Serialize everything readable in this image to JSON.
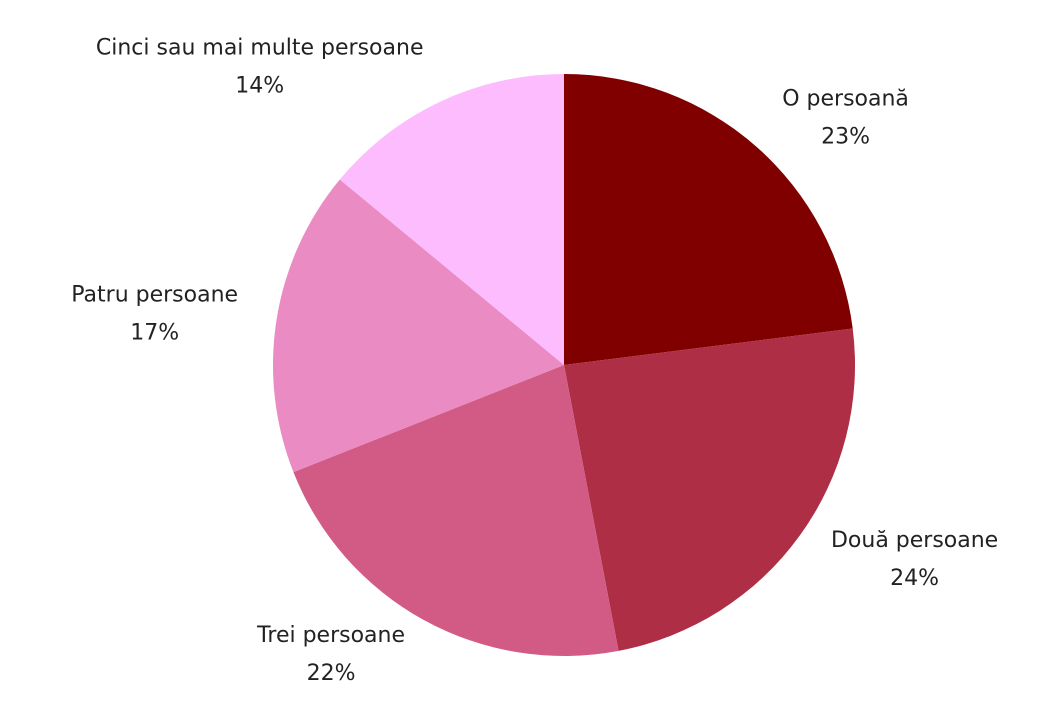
{
  "chart_data": {
    "type": "pie",
    "categories": [
      "O persoană",
      "Două persoane",
      "Trei persoane",
      "Patru persoane",
      "Cinci sau mai multe persoane"
    ],
    "values": [
      23,
      24,
      22,
      17,
      14
    ],
    "value_labels": [
      "23%",
      "24%",
      "22%",
      "17%",
      "14%"
    ],
    "colors": [
      "#800000",
      "#ae2e45",
      "#d15b85",
      "#ea8bc3",
      "#fdbcfd"
    ]
  }
}
